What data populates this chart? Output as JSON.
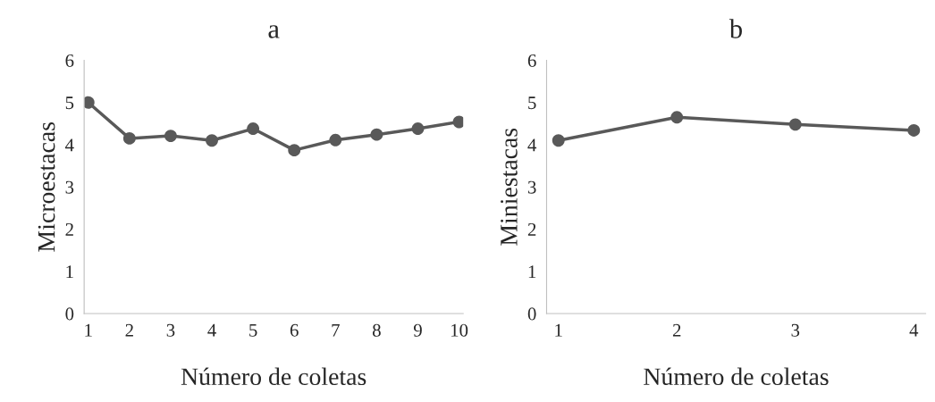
{
  "chart_data": [
    {
      "type": "line",
      "title": "a",
      "xlabel": "Número de coletas",
      "ylabel": "Microestacas",
      "categories": [
        "1",
        "2",
        "3",
        "4",
        "5",
        "6",
        "7",
        "8",
        "9",
        "10"
      ],
      "series": [
        {
          "color": "#595959",
          "values": [
            5.0,
            4.15,
            4.21,
            4.1,
            4.38,
            3.87,
            4.11,
            4.24,
            4.38,
            4.54
          ]
        }
      ],
      "ylim": [
        0,
        6
      ],
      "yticks": [
        0,
        1,
        2,
        3,
        4,
        5,
        6
      ],
      "marker": "circle",
      "line_style": "solid",
      "grid": false
    },
    {
      "type": "line",
      "title": "b",
      "xlabel": "Número de coletas",
      "ylabel": "Miniestacas",
      "categories": [
        "1",
        "2",
        "3",
        "4"
      ],
      "series": [
        {
          "color": "#595959",
          "values": [
            4.1,
            4.65,
            4.48,
            4.34
          ]
        }
      ],
      "ylim": [
        0,
        6
      ],
      "yticks": [
        0,
        1,
        2,
        3,
        4,
        5,
        6
      ],
      "marker": "circle",
      "line_style": "solid",
      "grid": false
    }
  ]
}
